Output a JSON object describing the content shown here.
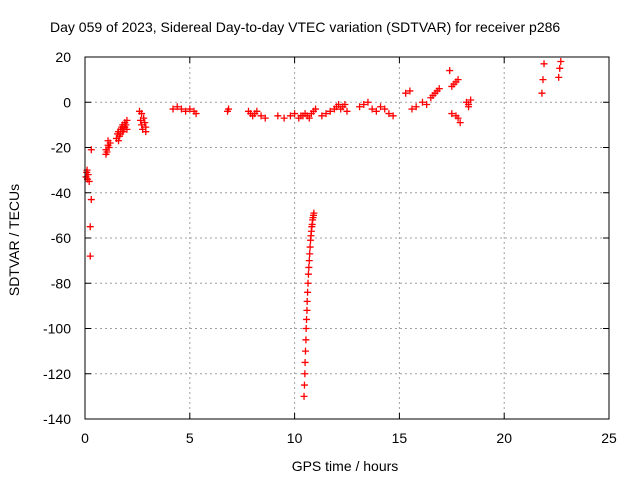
{
  "chart_data": {
    "type": "scatter",
    "title": "Day 059 of 2023, Sidereal Day-to-day VTEC variation (SDTVAR) for receiver p286",
    "xlabel": "GPS time / hours",
    "ylabel": "SDTVAR / TECUs",
    "xlim": [
      0,
      25
    ],
    "ylim": [
      -140,
      20
    ],
    "xticks": [
      0,
      5,
      10,
      15,
      20,
      25
    ],
    "yticks": [
      -140,
      -120,
      -100,
      -80,
      -60,
      -40,
      -20,
      0,
      20
    ],
    "xtick_labels": [
      "0",
      "5",
      "10",
      "15",
      "20",
      "25"
    ],
    "ytick_labels": [
      "-140",
      "-120",
      "-100",
      "-80",
      "-60",
      "-40",
      "-20",
      "0",
      "20"
    ],
    "grid": true,
    "marker": "+",
    "color": "#ff0000",
    "series": [
      {
        "name": "p286",
        "x": [
          0.05,
          0.08,
          0.1,
          0.12,
          0.15,
          0.2,
          0.25,
          0.25,
          0.3,
          0.3,
          1.0,
          1.0,
          1.05,
          1.1,
          1.1,
          1.15,
          1.2,
          1.5,
          1.55,
          1.6,
          1.6,
          1.65,
          1.7,
          1.7,
          1.75,
          1.8,
          1.8,
          1.85,
          1.9,
          1.9,
          1.95,
          2.0,
          2.0,
          2.6,
          2.65,
          2.7,
          2.7,
          2.75,
          2.8,
          2.85,
          2.9,
          2.9,
          4.2,
          4.4,
          4.6,
          4.8,
          5.0,
          5.2,
          5.3,
          6.8,
          6.85,
          7.8,
          7.9,
          8.0,
          8.1,
          8.2,
          8.4,
          8.6,
          9.2,
          9.5,
          9.8,
          10.0,
          10.2,
          10.3,
          10.4,
          10.5,
          10.6,
          10.7,
          10.8,
          10.9,
          11.0,
          11.3,
          11.5,
          11.7,
          11.9,
          12.0,
          12.1,
          12.2,
          12.3,
          12.4,
          12.5,
          13.1,
          13.3,
          13.5,
          13.7,
          13.9,
          14.1,
          14.3,
          14.5,
          14.7,
          15.3,
          15.5,
          15.6,
          15.8,
          16.1,
          16.3,
          16.5,
          16.6,
          16.7,
          16.8,
          16.9,
          17.4,
          17.5,
          17.6,
          17.7,
          17.8,
          17.5,
          17.7,
          17.8,
          17.9,
          18.2,
          18.3,
          18.4,
          18.3,
          21.8,
          21.85,
          21.9,
          22.6,
          22.65,
          22.7,
          10.45,
          10.47,
          10.49,
          10.5,
          10.52,
          10.54,
          10.55,
          10.57,
          10.59,
          10.6,
          10.62,
          10.64,
          10.66,
          10.68,
          10.7,
          10.72,
          10.74,
          10.76,
          10.78,
          10.8,
          10.82,
          10.84,
          10.86,
          10.88,
          10.9,
          10.92
        ],
        "y": [
          -33,
          -31,
          -30,
          -34,
          -32,
          -35,
          -55,
          -68,
          -43,
          -21,
          -23,
          -21,
          -22,
          -19,
          -17,
          -20,
          -18,
          -16,
          -14,
          -17,
          -13,
          -15,
          -12,
          -14,
          -11,
          -13,
          -10,
          -12,
          -9,
          -11,
          -10,
          -8,
          -12,
          -4,
          -8,
          -5,
          -10,
          -12,
          -7,
          -9,
          -11,
          -13,
          -3,
          -2,
          -3,
          -4,
          -3,
          -4,
          -5,
          -4,
          -3,
          -4,
          -5,
          -6,
          -5,
          -4,
          -6,
          -7,
          -6,
          -7,
          -6,
          -5,
          -7,
          -6,
          -6,
          -5,
          -6,
          -7,
          -5,
          -4,
          -3,
          -6,
          -5,
          -4,
          -3,
          -2,
          -1,
          -3,
          -2,
          -1,
          -4,
          -2,
          -1,
          0,
          -3,
          -4,
          -2,
          -3,
          -5,
          -6,
          4,
          5,
          -3,
          -2,
          0,
          -1,
          2,
          3,
          4,
          5,
          6,
          14,
          7,
          8,
          9,
          10,
          -5,
          -6,
          -7,
          -9,
          0,
          -1,
          1,
          -2,
          4,
          10,
          17,
          11,
          15,
          18,
          -130,
          -125,
          -120,
          -115,
          -110,
          -105,
          -100,
          -96,
          -92,
          -88,
          -84,
          -80,
          -76,
          -73,
          -70,
          -67,
          -64,
          -61,
          -59,
          -57,
          -55,
          -54,
          -52,
          -51,
          -50,
          -49
        ]
      }
    ]
  }
}
